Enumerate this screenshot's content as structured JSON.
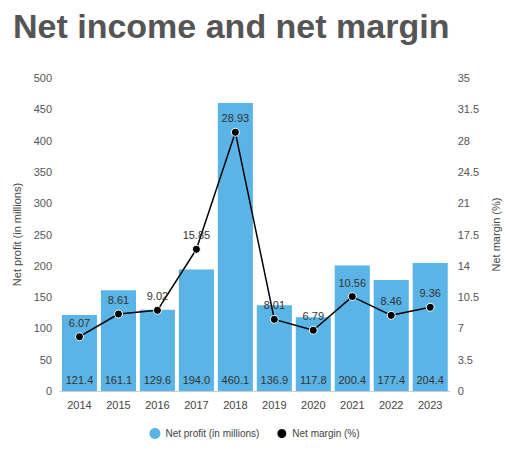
{
  "chart_data": {
    "type": "bar",
    "title": "Net income and net margin",
    "categories": [
      "2014",
      "2015",
      "2016",
      "2017",
      "2018",
      "2019",
      "2020",
      "2021",
      "2022",
      "2023"
    ],
    "series": [
      {
        "name": "Net profit (in millions)",
        "type": "bar",
        "color": "#5ab4e5",
        "values": [
          121.4,
          161.1,
          129.6,
          194.0,
          460.1,
          136.9,
          117.8,
          200.4,
          177.4,
          204.4
        ],
        "value_labels": [
          "121.4",
          "161.1",
          "129.6",
          "194.0",
          "460.1",
          "136.9",
          "117.8",
          "200.4",
          "177.4",
          "204.4"
        ]
      },
      {
        "name": "Net margin (%)",
        "type": "line",
        "color": "#000000",
        "axis": "y2",
        "marker": "circle",
        "values": [
          6.07,
          8.61,
          9.02,
          15.85,
          28.93,
          8.01,
          6.79,
          10.56,
          8.46,
          9.36
        ]
      }
    ],
    "ylabel": "Net profit (in millions)",
    "y2label": "Net margin (%)",
    "ylim": [
      0,
      500
    ],
    "yticks": [
      0,
      50,
      100,
      150,
      200,
      250,
      300,
      350,
      400,
      450,
      500
    ],
    "y2lim": [
      0,
      35
    ],
    "y2ticks": [
      0,
      3.5,
      7,
      10.5,
      14,
      17.5,
      21,
      24.5,
      28,
      31.5,
      35
    ],
    "legend": "bottom",
    "data_labels": true,
    "grid": false
  }
}
